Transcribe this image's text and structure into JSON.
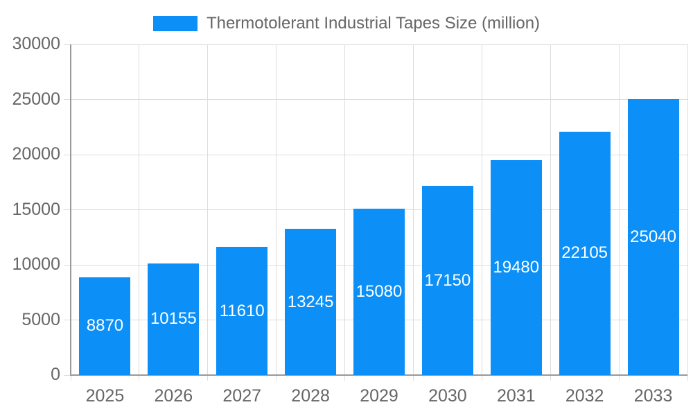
{
  "chart_data": {
    "type": "bar",
    "title": "Thermotolerant Industrial Tapes Size (million)",
    "categories": [
      "2025",
      "2026",
      "2027",
      "2028",
      "2029",
      "2030",
      "2031",
      "2032",
      "2033"
    ],
    "values": [
      8870,
      10155,
      11610,
      13245,
      15080,
      17150,
      19480,
      22105,
      25040
    ],
    "series_name": "Thermotolerant Industrial Tapes Size (million)",
    "xlabel": "",
    "ylabel": "",
    "ylim": [
      0,
      30000
    ],
    "yticks": [
      0,
      5000,
      10000,
      15000,
      20000,
      25000,
      30000
    ],
    "grid": true,
    "legend_position": "top-center",
    "bar_labels_inside": true,
    "colors": {
      "bar": "#0c90f8",
      "bar_label": "#ffffff",
      "tick_label": "#666666",
      "legend_label": "#666666",
      "gridline": "#dddddd",
      "axis_line": "#999999",
      "background": "#ffffff"
    }
  }
}
